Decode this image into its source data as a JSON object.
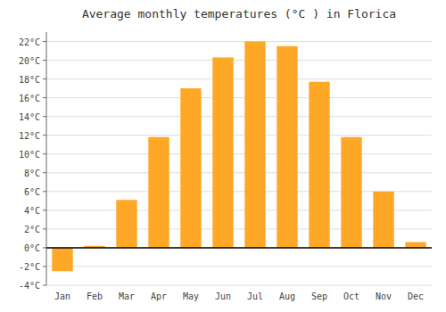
{
  "chart_data": {
    "type": "bar",
    "title": "Average monthly temperatures (°C ) in Florica",
    "categories": [
      "Jan",
      "Feb",
      "Mar",
      "Apr",
      "May",
      "Jun",
      "Jul",
      "Aug",
      "Sep",
      "Oct",
      "Nov",
      "Dec"
    ],
    "values": [
      -2.5,
      0.2,
      5.1,
      11.8,
      17.0,
      20.3,
      22.0,
      21.5,
      17.7,
      11.8,
      6.0,
      0.6
    ],
    "color": "#FFA726",
    "ylim": [
      -4,
      23
    ],
    "yticks": [
      {
        "value": -4,
        "label": "-4°C"
      },
      {
        "value": -2,
        "label": "-2°C"
      },
      {
        "value": 0,
        "label": "0°C"
      },
      {
        "value": 2,
        "label": "2°C"
      },
      {
        "value": 4,
        "label": "4°C"
      },
      {
        "value": 6,
        "label": "6°C"
      },
      {
        "value": 8,
        "label": "8°C"
      },
      {
        "value": 10,
        "label": "10°C"
      },
      {
        "value": 12,
        "label": "12°C"
      },
      {
        "value": 14,
        "label": "14°C"
      },
      {
        "value": 16,
        "label": "16°C"
      },
      {
        "value": 18,
        "label": "18°C"
      },
      {
        "value": 20,
        "label": "20°C"
      },
      {
        "value": 22,
        "label": "22°C"
      }
    ],
    "grid": true
  }
}
